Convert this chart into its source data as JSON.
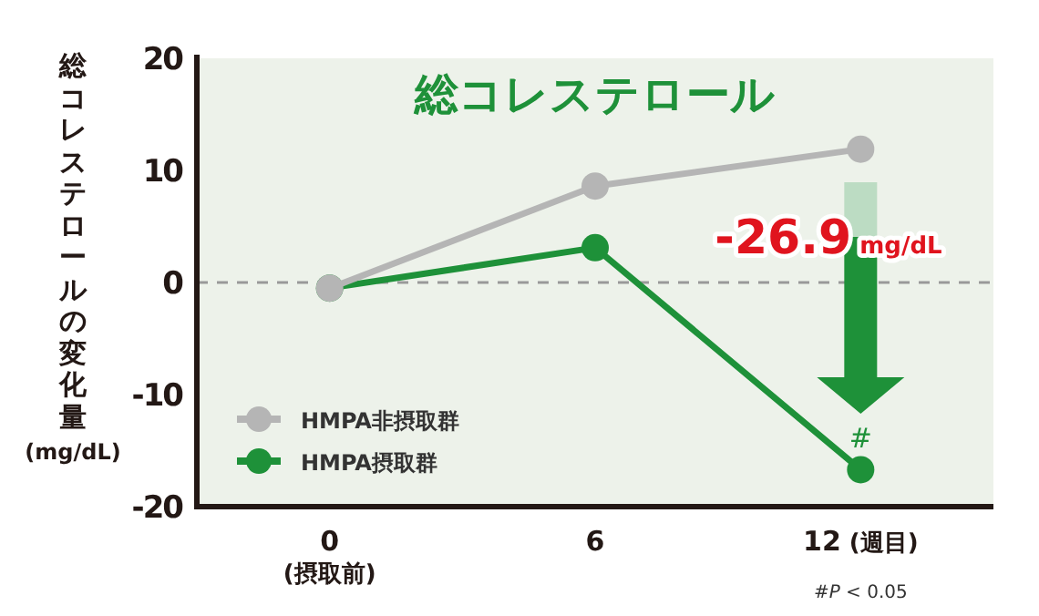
{
  "chart_data": {
    "type": "line",
    "title": "総コレステロール",
    "ylabel": "総コレステロールの変化量\n(mg/dL)",
    "x": [
      0,
      6,
      12
    ],
    "xlim": [
      -3,
      15
    ],
    "xticks": [
      {
        "value": 0,
        "label": "0\n(摂取前)"
      },
      {
        "value": 6,
        "label": "6"
      },
      {
        "value": 12,
        "label": "12 (週目)"
      }
    ],
    "ylim": [
      -20,
      20
    ],
    "yticks": [
      -20,
      -10,
      0,
      10,
      20
    ],
    "series": [
      {
        "name": "HMPA非摂取群",
        "color": "#b5b5b5",
        "values": [
          -0.5,
          8.6,
          11.9
        ]
      },
      {
        "name": "HMPA摂取群",
        "color": "#1e9139",
        "values": [
          -0.5,
          3.1,
          -16.7
        ]
      }
    ],
    "ref_lines": [
      {
        "axis": "y",
        "value": 0,
        "color": "#999999",
        "line_style": "dashed"
      }
    ],
    "annotations": [
      "-26.9 mg/dL",
      {
        "text": "#",
        "x": 12,
        "y": -16.7
      },
      "#*P* < 0.05"
    ],
    "marker": "circle",
    "line_style": "solid",
    "legend": "bottom left",
    "grid": false
  }
}
